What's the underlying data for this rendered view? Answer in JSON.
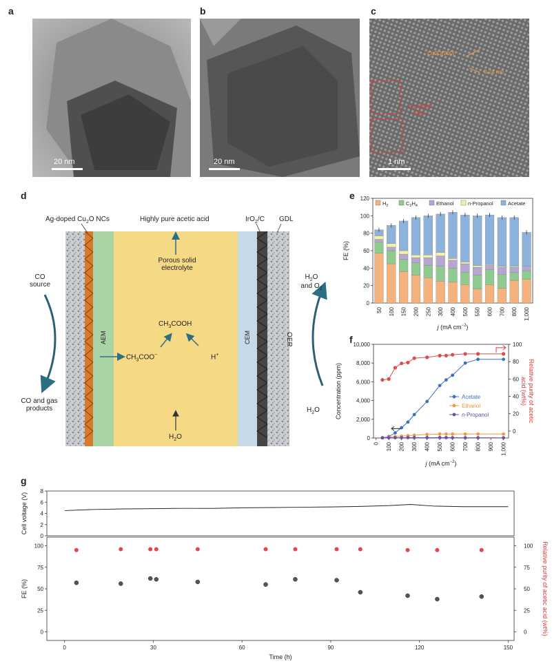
{
  "panels": {
    "a": {
      "label": "a",
      "scale": "20 nm"
    },
    "b": {
      "label": "b",
      "scale": "20 nm"
    },
    "c": {
      "label": "c",
      "scale": "1 nm",
      "ann1": "Cu2O(200)",
      "ann2": "0.24 nm",
      "ann3": "Ag-doped",
      "ann4": "sites"
    },
    "d": {
      "label": "d"
    },
    "e": {
      "label": "e"
    },
    "f": {
      "label": "f"
    },
    "g": {
      "label": "g"
    }
  },
  "diagram": {
    "top_left": "Ag-doped Cu",
    "top_left_sub": "2",
    "top_left_end": "O NCs",
    "top_center": "Highly pure acetic acid",
    "iro2": "IrO",
    "iro2_sub": "2",
    "iro2_end": "/C",
    "gdl": "GDL",
    "porous1": "Porous solid",
    "porous2": "electrolyte",
    "co_source1": "CO",
    "co_source2": "source",
    "co_products1": "CO and gas",
    "co_products2": "products",
    "h2o_o2_1": "H",
    "h2o_o2_sub": "2",
    "h2o_o2_2": "O",
    "h2o_o2_3": "and O",
    "h2o_o2_sub2": "2",
    "oer": "OER",
    "h2o_right": "H",
    "h2o_right_sub": "2",
    "h2o_right_end": "O",
    "aem": "AEM",
    "cem": "CEM",
    "ch3coo": "CH",
    "ch3coo_sub": "3",
    "ch3coo_end": "COO",
    "ch3cooh": "CH",
    "ch3cooh_sub": "3",
    "ch3cooh_end": "COOH",
    "hplus": "H",
    "h2o_bottom": "H",
    "h2o_bottom_sub": "2",
    "h2o_bottom_end": "O"
  },
  "chart_data": [
    {
      "type": "bar",
      "id": "e",
      "stacked": true,
      "ylabel": "FE (%)",
      "xlabel": "j (mA cm−2)",
      "xlabel_j": "j",
      "xlabel_rest": " (mA cm",
      "xlabel_sup": "−2",
      "xlabel_close": ")",
      "ylim": [
        0,
        120
      ],
      "yticks": [
        "0",
        "20",
        "40",
        "60",
        "80",
        "100",
        "120"
      ],
      "categories": [
        "50",
        "100",
        "150",
        "200",
        "250",
        "300",
        "400",
        "500",
        "550",
        "600",
        "700",
        "800",
        "1,000"
      ],
      "legend": [
        "H2",
        "C2H4",
        "Ethanol",
        "n-Propanol",
        "Acetate"
      ],
      "legend_labels": {
        "h2": "H",
        "h2_sub": "2",
        "c2h4": "C",
        "c2h4_s1": "2",
        "c2h4_m": "H",
        "c2h4_s2": "4",
        "ethanol": "Ethanol",
        "npropanol": "n-Propanol",
        "acetate": "Acetate"
      },
      "colors": [
        "#f3b27e",
        "#8fcb8f",
        "#b7a6d3",
        "#f3f1a8",
        "#8db3dd"
      ],
      "series": [
        {
          "name": "H2",
          "values": [
            57,
            45,
            36,
            32,
            29,
            25,
            24,
            21,
            16,
            21,
            17,
            26,
            27
          ]
        },
        {
          "name": "C2H4",
          "values": [
            13,
            15,
            14,
            14,
            14,
            17,
            16,
            14,
            16,
            17,
            16,
            9,
            10
          ]
        },
        {
          "name": "Ethanol",
          "values": [
            3,
            4,
            6,
            6,
            9,
            12,
            9,
            10,
            9,
            5,
            8,
            6,
            5
          ]
        },
        {
          "name": "n-Propanol",
          "values": [
            4,
            4,
            4,
            3,
            3,
            4,
            2,
            2,
            2,
            1,
            1,
            1,
            0
          ]
        },
        {
          "name": "Acetate",
          "values": [
            7,
            21,
            34,
            43,
            45,
            44,
            53,
            54,
            57,
            57,
            56,
            56,
            39
          ]
        }
      ]
    },
    {
      "type": "line",
      "id": "f",
      "ylabel": "Concentration (ppm)",
      "y2label1": "Relative purity of acetic",
      "y2label2": "acid (wt%)",
      "xlabel_j": "j",
      "xlabel_rest": " (mA cm",
      "xlabel_sup": "−2",
      "xlabel_close": ")",
      "ylim": [
        0,
        10000
      ],
      "y2lim": [
        -8,
        100
      ],
      "yticks": [
        "0",
        "2,000",
        "4,000",
        "6,000",
        "8,000",
        "10,000"
      ],
      "y2ticks": [
        "0",
        "20",
        "40",
        "60",
        "80",
        "100"
      ],
      "xticks": [
        "0",
        "100",
        "200",
        "300",
        "400",
        "500",
        "600",
        "700",
        "800",
        "900",
        "1,000"
      ],
      "x": [
        50,
        100,
        150,
        200,
        250,
        300,
        400,
        500,
        550,
        600,
        700,
        800,
        1000
      ],
      "series": [
        {
          "name": "Acetate",
          "color": "#3b6fc2",
          "values": [
            20,
            150,
            550,
            1100,
            1700,
            2500,
            3900,
            5600,
            6200,
            6700,
            8000,
            8400,
            8400
          ]
        },
        {
          "name": "Ethanol",
          "color": "#f39a3c",
          "values": [
            40,
            80,
            150,
            200,
            250,
            300,
            380,
            420,
            420,
            420,
            420,
            430,
            420
          ]
        },
        {
          "name": "n-Propanol",
          "color": "#6a4ea8",
          "values": [
            10,
            20,
            30,
            30,
            40,
            40,
            40,
            40,
            40,
            30,
            30,
            30,
            20
          ]
        }
      ],
      "purity": {
        "name": "Relative purity",
        "color": "#e04a4a",
        "values": [
          59,
          60,
          73,
          78,
          79,
          84,
          85,
          87,
          87,
          88,
          89,
          89,
          89
        ]
      }
    },
    {
      "type": "line",
      "id": "g_top",
      "ylabel": "Cell voltage (V)",
      "ylim": [
        0,
        8
      ],
      "yticks": [
        "0",
        "2",
        "4",
        "6",
        "8"
      ],
      "x": [
        0,
        10,
        20,
        30,
        40,
        50,
        60,
        70,
        80,
        90,
        100,
        110,
        117,
        125,
        135,
        150
      ],
      "values": [
        4.5,
        4.7,
        4.8,
        4.85,
        4.9,
        4.9,
        5.0,
        5.05,
        5.1,
        5.15,
        5.25,
        5.4,
        5.6,
        5.3,
        5.2,
        5.2
      ]
    },
    {
      "type": "scatter",
      "id": "g_bottom",
      "ylabel": "FE (%)",
      "y2label": "Relative purity of acetic acid (wt%)",
      "xlabel": "Time (h)",
      "xlim": [
        0,
        150
      ],
      "ylim": [
        -10,
        110
      ],
      "yticks": [
        "0",
        "25",
        "50",
        "75",
        "100"
      ],
      "y2ticks": [
        "0",
        "25",
        "50",
        "75",
        "100"
      ],
      "xticks": [
        "0",
        "30",
        "60",
        "90",
        "120",
        "150"
      ],
      "x": [
        4,
        19,
        29,
        31,
        45,
        68,
        78,
        92,
        100,
        116,
        126,
        141
      ],
      "fe": [
        57,
        56,
        62,
        61,
        58,
        55,
        61,
        60,
        46,
        42,
        38,
        41
      ],
      "purity": [
        95,
        96,
        96,
        96,
        96,
        96,
        96,
        96,
        96,
        95,
        95,
        95
      ]
    }
  ]
}
